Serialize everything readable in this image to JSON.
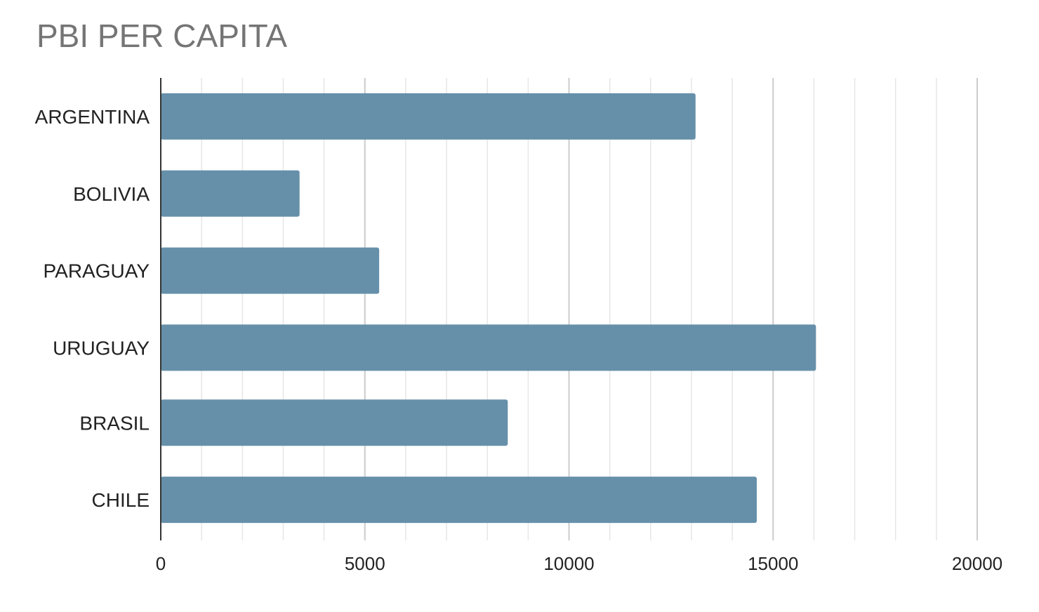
{
  "chart_data": {
    "type": "bar",
    "orientation": "horizontal",
    "title": "PBI PER CAPITA",
    "xlabel": "",
    "ylabel": "",
    "categories": [
      "ARGENTINA",
      "BOLIVIA",
      "PARAGUAY",
      "URUGUAY",
      "BRASIL",
      "CHILE"
    ],
    "values": [
      13100,
      3400,
      5350,
      16050,
      8500,
      14600
    ],
    "xlim": [
      0,
      20000
    ],
    "x_ticks": [
      0,
      5000,
      10000,
      15000,
      20000
    ],
    "minor_ticks_per_major": 5,
    "grid": true,
    "legend": "none",
    "colors": {
      "bar": "#6690aa",
      "major_grid": "#cccccc",
      "minor_grid": "#e6e6e6",
      "axis": "#333333",
      "label": "#222222",
      "title": "#757575"
    }
  }
}
